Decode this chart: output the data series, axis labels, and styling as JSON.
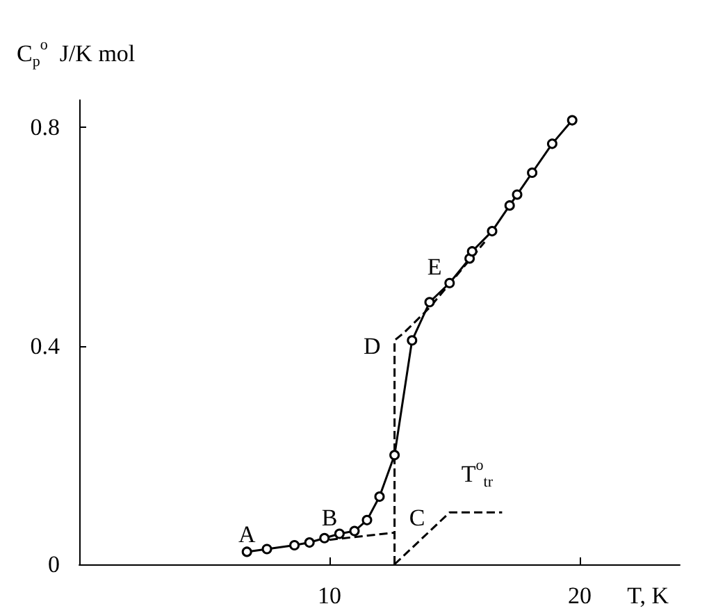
{
  "chart_data": {
    "type": "line",
    "xlabel": "T, K",
    "ylabel": "C$_{p}$$^{o}$  J/K mol",
    "xlim": [
      0,
      24
    ],
    "xticks": [
      10,
      20
    ],
    "ylim": [
      0,
      0.85
    ],
    "yticks": [
      0,
      0.4,
      0.8
    ],
    "grid": false,
    "series": [
      {
        "color": "#000000",
        "marker": "circle",
        "line_style": "solid",
        "x": [
          6.7,
          7.5,
          8.6,
          9.2,
          9.8,
          10.4,
          11.0,
          11.5,
          12.0,
          12.6,
          13.3,
          14.0,
          14.8,
          15.6,
          15.7,
          16.5,
          17.2,
          17.5,
          18.1,
          18.9,
          19.7
        ],
        "values": [
          0.023,
          0.028,
          0.035,
          0.04,
          0.048,
          0.056,
          0.061,
          0.081,
          0.124,
          0.2,
          0.41,
          0.48,
          0.515,
          0.56,
          0.573,
          0.61,
          0.657,
          0.677,
          0.717,
          0.77,
          0.813
        ]
      },
      {
        "color": "#000000",
        "marker": "none",
        "line_style": "dashed",
        "x": [
          10.0,
          12.6
        ],
        "values": [
          0.045,
          0.058
        ]
      },
      {
        "color": "#000000",
        "marker": "none",
        "line_style": "dashed",
        "x": [
          12.6,
          12.6,
          13.0,
          14.0,
          16.2
        ],
        "values": [
          0,
          0.41,
          0.425,
          0.47,
          0.59
        ]
      },
      {
        "color": "#000000",
        "marker": "none",
        "line_style": "dashed",
        "x": [
          12.6,
          14.8,
          16.9
        ],
        "values": [
          0,
          0.095,
          0.095
        ]
      }
    ],
    "annotations": [
      "A",
      "B",
      "C",
      "D",
      "E",
      "T$^{o}$$_{tr}$"
    ]
  }
}
